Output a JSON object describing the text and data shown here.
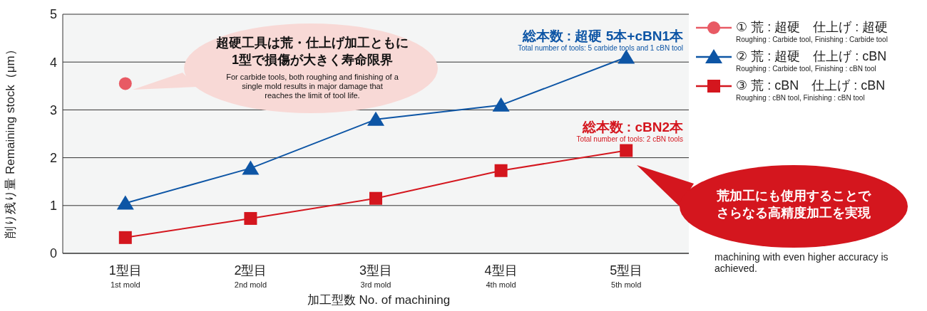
{
  "chart_data": {
    "type": "line",
    "ylabel": "削り残り量 Remaining stock（μm）",
    "xlabel": "加工型数 No. of machining",
    "categories": [
      "1型目\n1st mold",
      "2型目\n2nd mold",
      "3型目\n3rd mold",
      "4型目\n4th mold",
      "5型目\n5th mold"
    ],
    "series": [
      {
        "name": "① 荒 : 超硬　仕上げ : 超硬\nRoughing : Carbide tool, Finishing : Carbide tool",
        "color": "#e85a64",
        "marker": "circle",
        "values": [
          3.55,
          null,
          null,
          null,
          null
        ]
      },
      {
        "name": "② 荒 : 超硬　仕上げ : cBN\nRoughing : Carbide tool, Finishing : cBN tool",
        "color": "#0d55a5",
        "marker": "triangle",
        "values": [
          1.05,
          1.78,
          2.8,
          3.1,
          4.1
        ]
      },
      {
        "name": "③ 荒 : cBN　仕上げ : cBN\nRoughing : cBN tool, Finishing : cBN tool",
        "color": "#d4161e",
        "marker": "square",
        "values": [
          0.33,
          0.73,
          1.15,
          1.73,
          2.15
        ]
      }
    ],
    "ylim": [
      0,
      5
    ],
    "yticks": [
      0,
      1,
      2,
      3,
      4,
      5
    ],
    "grid": "y",
    "legend": "right",
    "annotations": [
      "超硬工具は荒・仕上げ加工ともに\n1型で損傷が大きく寿命限界",
      "For carbide tools, both roughing and finishing of a\nsingle mold results in major damage that\nreaches the limit of tool life.",
      "総本数 : 超硬 5本+cBN1本",
      "Total number of tools: 5 carbide tools and 1 cBN tool",
      "総本数 : cBN2本",
      "Total number of tools: 2 cBN tools",
      "荒加工にも使用することでさらなる高精度加工を実現",
      "machining with even higher accuracy is\nachieved."
    ]
  }
}
